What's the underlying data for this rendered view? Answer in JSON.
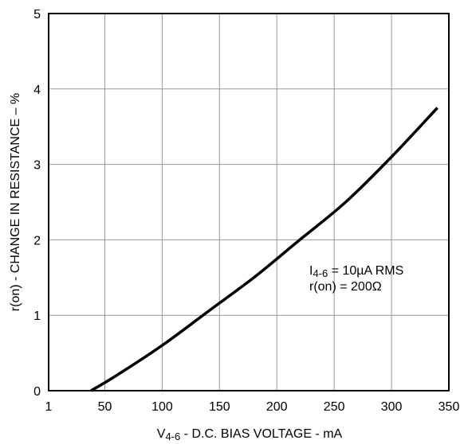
{
  "chart_data": {
    "type": "line",
    "xlabel_main": "V",
    "xlabel_sub": "4-6",
    "xlabel_rest": " - D.C. BIAS VOLTAGE - mA",
    "ylabel": "r(on) - CHANGE IN RESISTANCE – %",
    "xlim": [
      1,
      350
    ],
    "ylim": [
      0,
      5
    ],
    "x_ticks": [
      1,
      50,
      100,
      150,
      200,
      250,
      300,
      350
    ],
    "x_tick_labels": [
      "1",
      "50",
      "100",
      "150",
      "200",
      "250",
      "300",
      "350"
    ],
    "y_ticks": [
      0,
      1,
      2,
      3,
      4,
      5
    ],
    "y_tick_labels": [
      "0",
      "1",
      "2",
      "3",
      "4",
      "5"
    ],
    "grid": true,
    "series": [
      {
        "x": [
          38,
          60,
          100,
          140,
          180,
          220,
          260,
          300,
          340
        ],
        "y": [
          0.0,
          0.2,
          0.6,
          1.05,
          1.5,
          2.0,
          2.5,
          3.1,
          3.75
        ]
      }
    ],
    "annotation": {
      "line1_main": "I",
      "line1_sub": "4-6",
      "line1_rest": " = 10µA RMS",
      "line2": "r(on) = 200Ω"
    },
    "colors": {
      "line": "#000000",
      "grid": "#999999",
      "frame": "#000000"
    }
  }
}
